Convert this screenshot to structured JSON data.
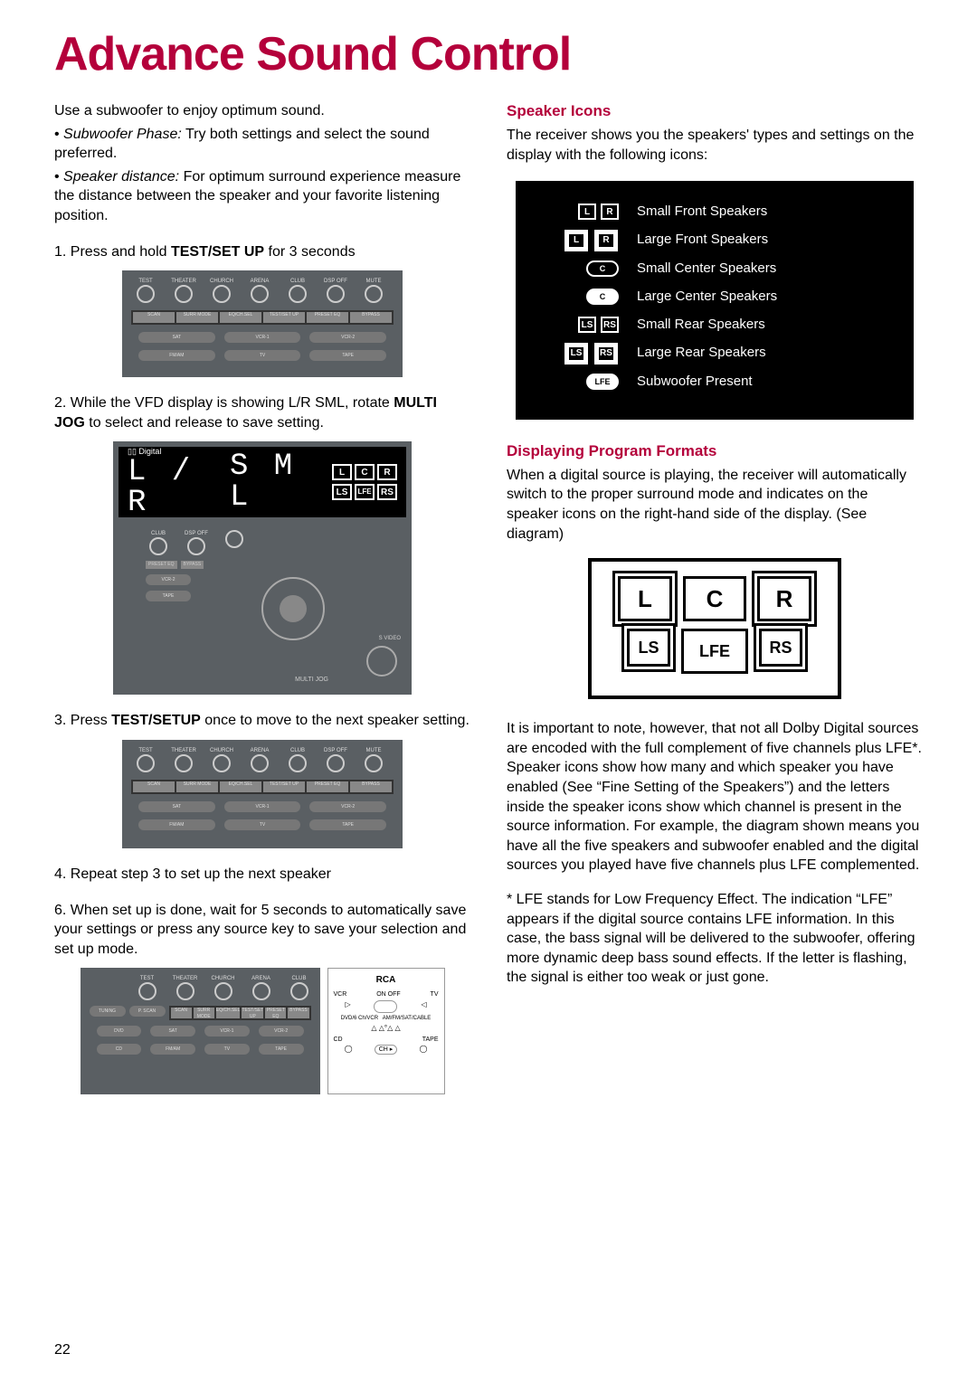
{
  "title": "Advance Sound Control",
  "page_number": "22",
  "colors": {
    "accent": "#b4003b",
    "panel_grey": "#5a5f63",
    "black": "#000000",
    "white": "#ffffff"
  },
  "left": {
    "intro": "Use a subwoofer to enjoy optimum sound.",
    "bullet1_label": "Subwoofer Phase:",
    "bullet1_text": "Try both settings and select the sound preferred.",
    "bullet2_label": "Speaker distance:",
    "bullet2_text": "For optimum surround experience measure the distance between the speaker and your favorite listening position.",
    "step1_pre": "1.  Press and hold ",
    "step1_bold": "TEST/SET UP",
    "step1_post": " for 3 seconds",
    "step2_pre": "2.  While the VFD display is showing L/R SML, rotate ",
    "step2_bold": "MULTI JOG",
    "step2_post": " to select and release to save setting.",
    "vfd_digital": "Digital",
    "vfd_lr": "L / R",
    "vfd_sml": "S M L",
    "jog_label": "MULTI JOG",
    "svideo_label": "S VIDEO",
    "step3_pre": "3. Press ",
    "step3_bold": "TEST/SETUP",
    "step3_post": " once to move to the next speaker setting.",
    "step4": "4. Repeat step 3 to set up the next speaker",
    "step6": "6. When set up is done, wait for 5 seconds to automatically save your settings or press any source key to save your selection and set up mode.",
    "remote_brand": "RCA",
    "remote_labels": [
      "VCR",
      "ON OFF",
      "TV",
      "DVD/6 Ch/VCR",
      "AM/FM/SAT/CABLE",
      "CD",
      "TAPE",
      "CH"
    ],
    "panel_knobs": [
      "TEST",
      "THEATER",
      "CHURCH",
      "ARENA",
      "CLUB",
      "DSP OFF",
      "MUTE"
    ],
    "panel_bar": [
      "SCAN",
      "SURR MODE",
      "EQ/CH.SEL",
      "TEST/SET UP",
      "PRESET EQ",
      "BYPASS"
    ],
    "panel_src": [
      "SAT",
      "VCR-1",
      "VCR-2",
      "FM/AM",
      "TV",
      "TAPE",
      "DVD",
      "CD"
    ],
    "panel_misc": "MULTI JOG"
  },
  "right": {
    "h1": "Speaker Icons",
    "p1": "The receiver shows you the speakers' types and settings on the display with the following icons:",
    "rows": [
      {
        "icons": [
          {
            "t": "L",
            "cls": "sb sb-small"
          },
          {
            "t": "R",
            "cls": "sb sb-small"
          }
        ],
        "label": "Small Front Speakers"
      },
      {
        "icons": [
          {
            "t": "L",
            "cls": "sb sb-small dbig"
          },
          {
            "t": "R",
            "cls": "sb sb-small dbig"
          }
        ],
        "label": "Large Front Speakers"
      },
      {
        "icons": [
          {
            "t": "C",
            "cls": "pill"
          }
        ],
        "label": "Small Center Speakers"
      },
      {
        "icons": [
          {
            "t": "C",
            "cls": "pill pill-fill",
            "inv": true
          }
        ],
        "label": "Large Center Speakers"
      },
      {
        "icons": [
          {
            "t": "LS",
            "cls": "sb sb-small"
          },
          {
            "t": "RS",
            "cls": "sb sb-small"
          }
        ],
        "label": "Small Rear Speakers"
      },
      {
        "icons": [
          {
            "t": "LS",
            "cls": "sb sb-small dbig"
          },
          {
            "t": "RS",
            "cls": "sb sb-small dbig"
          }
        ],
        "label": "Large Rear Speakers"
      },
      {
        "icons": [
          {
            "t": "LFE",
            "cls": "pill pill-fill"
          }
        ],
        "label": "Subwoofer Present"
      }
    ],
    "h2": "Displaying Program Formats",
    "p2": "When a digital source is playing, the receiver will automatically switch to the proper surround mode and indicates on the speaker icons on the right-hand side of the display. (See diagram)",
    "diagram": {
      "row1": [
        "L",
        "C",
        "R"
      ],
      "row2": [
        "LS",
        "LFE",
        "RS"
      ]
    },
    "p3": "It is important to note, however, that not all Dolby Digital sources are encoded with the full complement of five channels plus LFE*. Speaker icons show how many and which speaker you have enabled (See “Fine Setting of the Speakers”) and the letters inside the speaker icons show which channel is present in the source information. For example, the diagram shown means you have all the five speakers and subwoofer enabled and the digital sources you played have five channels plus LFE complemented.",
    "p4": "* LFE stands for Low Frequency Effect. The indication “LFE” appears if the digital source contains LFE information. In this case, the bass signal will be delivered to the subwoofer, offering more dynamic deep bass sound effects. If the letter is flashing, the signal is either too weak or just gone."
  }
}
